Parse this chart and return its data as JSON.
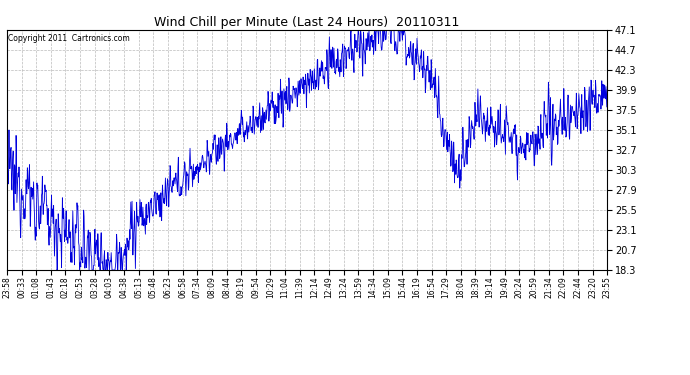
{
  "title": "Wind Chill per Minute (Last 24 Hours)  20110311",
  "copyright": "Copyright 2011  Cartronics.com",
  "line_color": "#0000dd",
  "bg_color": "#ffffff",
  "plot_bg_color": "#ffffff",
  "grid_color": "#bbbbbb",
  "yticks": [
    18.3,
    20.7,
    23.1,
    25.5,
    27.9,
    30.3,
    32.7,
    35.1,
    37.5,
    39.9,
    42.3,
    44.7,
    47.1
  ],
  "ylim": [
    18.3,
    47.1
  ],
  "xtick_labels": [
    "23:58",
    "00:33",
    "01:08",
    "01:43",
    "02:18",
    "02:53",
    "03:28",
    "04:03",
    "04:38",
    "05:13",
    "05:48",
    "06:23",
    "06:58",
    "07:34",
    "08:09",
    "08:44",
    "09:19",
    "09:54",
    "10:29",
    "11:04",
    "11:39",
    "12:14",
    "12:49",
    "13:24",
    "13:59",
    "14:34",
    "15:09",
    "15:44",
    "16:19",
    "16:54",
    "17:29",
    "18:04",
    "18:39",
    "19:14",
    "19:49",
    "20:24",
    "20:59",
    "21:34",
    "22:09",
    "22:44",
    "23:20",
    "23:55"
  ],
  "figsize": [
    6.9,
    3.75
  ],
  "dpi": 100
}
